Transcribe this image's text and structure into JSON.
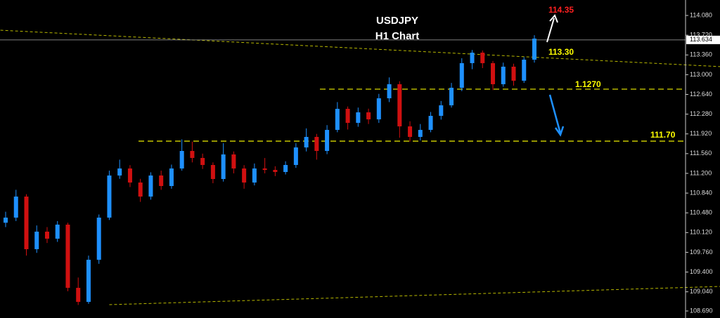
{
  "chart_data": {
    "type": "candlestick",
    "title": "USDJPY",
    "subtitle": "H1 Chart",
    "annotations": [
      "114.35",
      "113.30",
      "1.1270",
      "111.70"
    ],
    "up_color": "#1e90ff",
    "down_color": "#d01010",
    "open": [
      110.3,
      110.393,
      110.777,
      109.817,
      110.137,
      110.009,
      110.265,
      109.112,
      108.856,
      109.624,
      110.393,
      111.161,
      111.289,
      111.033,
      110.777,
      111.161,
      110.969,
      111.289,
      111.609,
      111.481,
      111.353,
      111.097,
      111.545,
      111.289,
      111.033,
      111.289,
      111.263,
      111.225,
      111.353,
      111.673,
      111.865,
      111.609,
      111.993,
      112.377,
      112.121,
      112.313,
      112.185,
      112.569,
      112.826,
      112.057,
      111.865,
      111.993,
      112.249,
      112.441,
      112.761,
      113.21,
      113.402,
      113.21,
      112.826,
      113.146,
      112.89,
      113.274
    ],
    "high": [
      110.5,
      110.9,
      110.82,
      110.25,
      110.22,
      110.33,
      110.3,
      109.3,
      109.7,
      110.45,
      111.25,
      111.45,
      111.35,
      111.1,
      111.22,
      111.25,
      111.36,
      111.82,
      111.78,
      111.56,
      111.4,
      111.75,
      111.6,
      111.35,
      111.38,
      111.48,
      111.33,
      111.42,
      111.75,
      112.02,
      111.92,
      112.08,
      112.5,
      112.42,
      112.4,
      112.38,
      112.65,
      112.95,
      112.88,
      112.15,
      112.1,
      112.32,
      112.52,
      112.85,
      113.3,
      113.45,
      113.44,
      113.25,
      113.22,
      113.2,
      113.32,
      113.72
    ],
    "low": [
      110.22,
      110.33,
      109.7,
      109.75,
      109.93,
      109.95,
      109.05,
      108.8,
      108.82,
      109.55,
      110.35,
      111.1,
      110.95,
      110.68,
      110.72,
      110.9,
      110.92,
      111.25,
      111.4,
      111.28,
      111.02,
      111.05,
      111.2,
      110.92,
      110.98,
      111.2,
      111.15,
      111.18,
      111.3,
      111.6,
      111.45,
      111.55,
      111.95,
      112.0,
      112.05,
      112.1,
      112.12,
      112.5,
      111.85,
      111.78,
      111.8,
      111.95,
      112.18,
      112.4,
      112.7,
      113.1,
      113.12,
      112.72,
      112.78,
      112.8,
      112.85,
      113.22
    ],
    "close": [
      110.393,
      110.777,
      109.817,
      110.137,
      110.009,
      110.265,
      109.112,
      108.856,
      109.624,
      110.393,
      111.161,
      111.289,
      111.033,
      110.777,
      111.161,
      110.969,
      111.289,
      111.609,
      111.481,
      111.353,
      111.097,
      111.545,
      111.289,
      111.033,
      111.289,
      111.263,
      111.225,
      111.353,
      111.673,
      111.865,
      111.609,
      111.993,
      112.377,
      112.121,
      112.313,
      112.185,
      112.569,
      112.826,
      112.057,
      111.865,
      111.993,
      112.249,
      112.441,
      112.761,
      113.21,
      113.402,
      113.21,
      112.826,
      113.146,
      112.89,
      113.274,
      113.658
    ],
    "last_price": {
      "value": 113.634,
      "label": "113.634"
    },
    "levels": [
      112.736,
      111.788
    ],
    "trendlines": [
      {
        "start": [
          -0.5,
          113.811
        ],
        "end": [
          69,
          113.146
        ]
      },
      {
        "start": [
          10,
          108.805
        ],
        "end": [
          69,
          109.138
        ]
      }
    ],
    "ylim": [
      108.562,
      114.362
    ],
    "yticks": [
      {
        "value": 114.08,
        "label": "114.080"
      },
      {
        "value": 113.72,
        "label": "113.720"
      },
      {
        "value": 113.36,
        "label": "113.360"
      },
      {
        "value": 113.0,
        "label": "113.000"
      },
      {
        "value": 112.64,
        "label": "112.640"
      },
      {
        "value": 112.28,
        "label": "112.280"
      },
      {
        "value": 111.92,
        "label": "111.920"
      },
      {
        "value": 111.56,
        "label": "111.560"
      },
      {
        "value": 111.2,
        "label": "111.200"
      },
      {
        "value": 110.84,
        "label": "110.840"
      },
      {
        "value": 110.48,
        "label": "110.480"
      },
      {
        "value": 110.12,
        "label": "110.120"
      },
      {
        "value": 109.76,
        "label": "109.760"
      },
      {
        "value": 109.4,
        "label": "109.400"
      },
      {
        "value": 109.04,
        "label": "109.040"
      },
      {
        "value": 108.69,
        "label": "108.690"
      }
    ]
  }
}
